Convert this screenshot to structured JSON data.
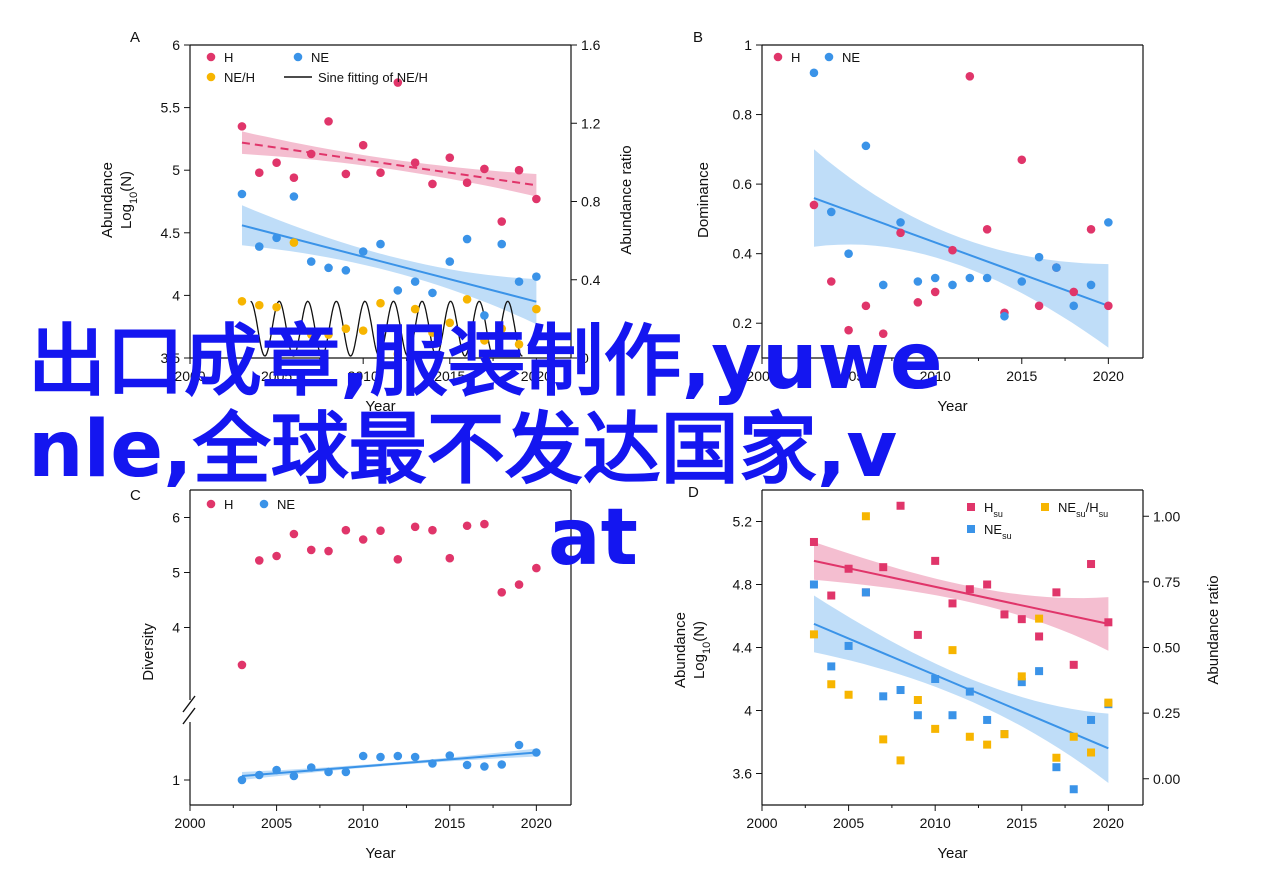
{
  "overlay": {
    "line1": "出口成章,服装制作,yuwe",
    "line2": "nle,全球最不发达国家,v",
    "line3": "at"
  },
  "colors": {
    "red": "#e0356a",
    "blue": "#3a93e8",
    "yellow": "#f7b500",
    "red_band": "#f0a8c0",
    "blue_band": "#a9d1f5",
    "text": "#111111",
    "overlay": "#1416f0"
  },
  "chart_data": [
    {
      "panel": "A",
      "type": "scatter",
      "xlabel": "Year",
      "ylabel_line1": "Abundance",
      "ylabel_line2": "Log10(N)",
      "y2label": "Abundance ratio",
      "xlim": [
        2000,
        2022
      ],
      "ylim": [
        3.5,
        6.0
      ],
      "y2lim": [
        0.0,
        1.6
      ],
      "xticks": [
        2000,
        2005,
        2010,
        2015,
        2020
      ],
      "yticks": [
        3.5,
        4.0,
        4.5,
        5.0,
        5.5,
        6.0
      ],
      "y2ticks": [
        0.0,
        0.4,
        0.8,
        1.2,
        1.6
      ],
      "legend": [
        "H",
        "NE",
        "NE/H",
        "Sine fitting of NE/H"
      ],
      "series": [
        {
          "name": "H",
          "marker": "circle",
          "color": "red",
          "axis": "left",
          "x": [
            2003,
            2004,
            2005,
            2006,
            2007,
            2008,
            2009,
            2010,
            2011,
            2012,
            2013,
            2014,
            2015,
            2016,
            2017,
            2018,
            2019,
            2020
          ],
          "y": [
            5.35,
            4.98,
            5.06,
            4.94,
            5.13,
            5.39,
            4.97,
            5.2,
            4.98,
            5.7,
            5.06,
            4.89,
            5.1,
            4.9,
            5.01,
            4.59,
            5.0,
            4.77
          ]
        },
        {
          "name": "NE",
          "marker": "circle",
          "color": "blue",
          "axis": "left",
          "x": [
            2003,
            2004,
            2005,
            2006,
            2007,
            2008,
            2009,
            2010,
            2011,
            2012,
            2013,
            2014,
            2015,
            2016,
            2017,
            2018,
            2019,
            2020
          ],
          "y": [
            4.81,
            4.39,
            4.46,
            4.79,
            4.27,
            4.22,
            4.2,
            4.35,
            4.41,
            4.04,
            4.11,
            4.02,
            4.27,
            4.45,
            3.84,
            4.41,
            4.11,
            4.15
          ]
        },
        {
          "name": "NE/H",
          "marker": "circle",
          "color": "yellow",
          "axis": "right",
          "x": [
            2003,
            2004,
            2005,
            2006,
            2007,
            2008,
            2009,
            2010,
            2011,
            2012,
            2013,
            2014,
            2015,
            2016,
            2017,
            2018,
            2019,
            2020
          ],
          "y": [
            0.29,
            0.27,
            0.26,
            0.59,
            0.12,
            0.12,
            0.15,
            0.14,
            0.28,
            0.02,
            0.25,
            0.13,
            0.18,
            0.3,
            0.09,
            0.15,
            0.07,
            0.25
          ]
        },
        {
          "name": "Sine fitting of NE/H",
          "type": "sine",
          "color": "text",
          "axis": "right",
          "x_start": 2003.5,
          "x_end": 2019.2,
          "period": 1.65,
          "amplitude": 0.14,
          "offset": 0.15
        }
      ],
      "fits": [
        {
          "series": "H",
          "axis": "left",
          "x": [
            2003,
            2020
          ],
          "y": [
            5.22,
            4.88
          ],
          "band_half": [
            0.09,
            0.09
          ],
          "band_mid_half": 0.04,
          "style": "dashed"
        },
        {
          "series": "NE",
          "axis": "left",
          "x": [
            2003,
            2020
          ],
          "y": [
            4.56,
            3.95
          ],
          "band_half": [
            0.16,
            0.18
          ],
          "band_mid_half": 0.06,
          "style": "solid"
        }
      ]
    },
    {
      "panel": "B",
      "type": "scatter",
      "xlabel": "Year",
      "ylabel": "Dominance",
      "xlim": [
        2000,
        2022
      ],
      "ylim": [
        0.1,
        1.0
      ],
      "xticks": [
        2000,
        2005,
        2010,
        2015,
        2020
      ],
      "yticks": [
        0.2,
        0.4,
        0.6,
        0.8,
        1.0
      ],
      "legend": [
        "H",
        "NE"
      ],
      "series": [
        {
          "name": "H",
          "marker": "circle",
          "color": "red",
          "x": [
            2003,
            2004,
            2005,
            2006,
            2007,
            2008,
            2009,
            2010,
            2011,
            2012,
            2013,
            2014,
            2015,
            2016,
            2017,
            2018,
            2019,
            2020
          ],
          "y": [
            0.54,
            0.32,
            0.18,
            0.25,
            0.17,
            0.46,
            0.26,
            0.29,
            0.41,
            0.91,
            0.47,
            0.23,
            0.67,
            0.25,
            0.36,
            0.29,
            0.47,
            0.25
          ]
        },
        {
          "name": "NE",
          "marker": "circle",
          "color": "blue",
          "x": [
            2003,
            2004,
            2005,
            2006,
            2007,
            2008,
            2009,
            2010,
            2011,
            2012,
            2013,
            2014,
            2015,
            2016,
            2017,
            2018,
            2019,
            2020
          ],
          "y": [
            0.92,
            0.52,
            0.4,
            0.71,
            0.31,
            0.49,
            0.32,
            0.33,
            0.31,
            0.33,
            0.33,
            0.22,
            0.32,
            0.39,
            0.36,
            0.25,
            0.31,
            0.49
          ]
        }
      ],
      "fits": [
        {
          "series": "NE",
          "x": [
            2003,
            2020
          ],
          "y": [
            0.56,
            0.25
          ],
          "band_half": [
            0.14,
            0.12
          ],
          "band_mid_half": 0.04,
          "style": "solid"
        }
      ]
    },
    {
      "panel": "C",
      "type": "scatter",
      "xlabel": "Year",
      "ylabel": "Diversity",
      "xlim": [
        2000,
        2022
      ],
      "ylim_upper": [
        2.5,
        6.5
      ],
      "ylim_lower": [
        0.5,
        2.2
      ],
      "axis_break": true,
      "xticks": [
        2000,
        2005,
        2010,
        2015,
        2020
      ],
      "yticks_upper": [
        4,
        5,
        6
      ],
      "yticks_lower": [
        1
      ],
      "legend": [
        "H",
        "NE"
      ],
      "series": [
        {
          "name": "H",
          "marker": "circle",
          "color": "red",
          "x": [
            2003,
            2004,
            2005,
            2006,
            2007,
            2008,
            2009,
            2010,
            2011,
            2012,
            2013,
            2014,
            2015,
            2016,
            2017,
            2018,
            2019,
            2020
          ],
          "y": [
            3.32,
            5.22,
            5.3,
            5.7,
            5.41,
            5.39,
            5.77,
            5.6,
            5.76,
            5.24,
            5.83,
            5.77,
            5.26,
            5.85,
            5.88,
            4.64,
            4.78,
            5.08
          ]
        },
        {
          "name": "NE",
          "marker": "circle",
          "color": "blue",
          "x": [
            2003,
            2004,
            2005,
            2006,
            2007,
            2008,
            2009,
            2010,
            2011,
            2012,
            2013,
            2014,
            2015,
            2016,
            2017,
            2018,
            2019,
            2020
          ],
          "y": [
            1.0,
            1.1,
            1.2,
            1.08,
            1.25,
            1.16,
            1.16,
            1.48,
            1.46,
            1.48,
            1.46,
            1.33,
            1.49,
            1.3,
            1.27,
            1.31,
            1.7,
            1.55
          ]
        }
      ],
      "fits": [
        {
          "series": "NE",
          "x": [
            2003,
            2020
          ],
          "y": [
            1.08,
            1.55
          ],
          "band_half": [
            0.08,
            0.08
          ],
          "band_mid_half": 0.03,
          "style": "solid"
        }
      ]
    },
    {
      "panel": "D",
      "type": "scatter",
      "xlabel": "Year",
      "ylabel_line1": "Abundance",
      "ylabel_line2": "Log10(N)",
      "y2label": "Abundance ratio",
      "xlim": [
        2000,
        2022
      ],
      "ylim": [
        3.4,
        5.4
      ],
      "y2lim": [
        -0.1,
        1.1
      ],
      "xticks": [
        2000,
        2005,
        2010,
        2015,
        2020
      ],
      "yticks": [
        3.6,
        4.0,
        4.4,
        4.8,
        5.2
      ],
      "y2ticks": [
        0.0,
        0.25,
        0.5,
        0.75,
        1.0
      ],
      "y2ticklabels": [
        "0.00",
        "0.25",
        "0.50",
        "0.75",
        "1.00"
      ],
      "legend": [
        "Hsu",
        "NEsu/Hsu",
        "NEsu"
      ],
      "series": [
        {
          "name": "Hsu",
          "marker": "square",
          "color": "red",
          "axis": "left",
          "x": [
            2003,
            2004,
            2005,
            2006,
            2007,
            2008,
            2009,
            2010,
            2011,
            2012,
            2013,
            2014,
            2015,
            2016,
            2017,
            2018,
            2019,
            2020
          ],
          "y": [
            5.07,
            4.73,
            4.9,
            4.75,
            4.91,
            5.3,
            4.48,
            4.95,
            4.68,
            4.77,
            4.8,
            4.61,
            4.58,
            4.47,
            4.75,
            4.29,
            4.93,
            4.56
          ]
        },
        {
          "name": "NEsu",
          "marker": "square",
          "color": "blue",
          "axis": "left",
          "x": [
            2003,
            2004,
            2005,
            2006,
            2007,
            2008,
            2009,
            2010,
            2011,
            2012,
            2013,
            2014,
            2015,
            2016,
            2017,
            2018,
            2019,
            2020
          ],
          "y": [
            4.8,
            4.28,
            4.41,
            4.75,
            4.09,
            4.13,
            3.97,
            4.2,
            3.97,
            4.12,
            3.94,
            3.85,
            4.18,
            4.25,
            3.64,
            3.5,
            3.94,
            4.04
          ]
        },
        {
          "name": "NEsu/Hsu",
          "marker": "square",
          "color": "yellow",
          "axis": "right",
          "x": [
            2003,
            2004,
            2005,
            2006,
            2007,
            2008,
            2009,
            2010,
            2011,
            2012,
            2013,
            2014,
            2015,
            2016,
            2017,
            2018,
            2019,
            2020
          ],
          "y": [
            0.55,
            0.36,
            0.32,
            1.0,
            0.15,
            0.07,
            0.3,
            0.19,
            0.49,
            0.16,
            0.13,
            0.17,
            0.39,
            0.61,
            0.08,
            0.16,
            0.1,
            0.29
          ]
        }
      ],
      "fits": [
        {
          "series": "Hsu",
          "axis": "left",
          "x": [
            2003,
            2020
          ],
          "y": [
            4.95,
            4.55
          ],
          "band_half": [
            0.12,
            0.17
          ],
          "band_mid_half": 0.05,
          "style": "solid"
        },
        {
          "series": "NEsu",
          "axis": "left",
          "x": [
            2003,
            2020
          ],
          "y": [
            4.55,
            3.76
          ],
          "band_half": [
            0.18,
            0.22
          ],
          "band_mid_half": 0.07,
          "style": "solid"
        }
      ]
    }
  ]
}
